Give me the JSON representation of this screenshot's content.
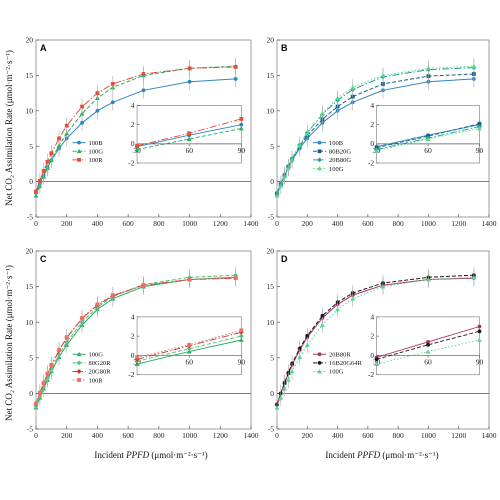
{
  "figure": {
    "ylabel": "Net CO₂ Assimilation Rate (μmol·m⁻²·s⁻¹)",
    "xlabel": "Incident PPFD (μmol·m⁻²·s⁻¹)",
    "xlabel_parts": [
      "Incident ",
      "PPFD",
      " (μmol·m⁻²·s⁻¹)"
    ]
  },
  "chart_data": [
    {
      "panel": "A",
      "type": "line",
      "x": [
        0,
        25,
        50,
        75,
        100,
        150,
        200,
        300,
        400,
        500,
        700,
        1000,
        1300
      ],
      "xlim": [
        0,
        1400
      ],
      "ylim": [
        -5,
        20
      ],
      "xticks": [
        0,
        200,
        400,
        600,
        800,
        1000,
        1200,
        1400
      ],
      "yticks": [
        -5,
        0,
        5,
        10,
        15,
        20
      ],
      "legend_position": "center-left",
      "series": [
        {
          "name": "100B",
          "color": "#2e86c1",
          "dash": "",
          "marker": "circle",
          "values": [
            -1.6,
            -0.3,
            0.9,
            2.0,
            3.0,
            4.7,
            6.1,
            8.3,
            10.0,
            11.2,
            12.9,
            14.1,
            14.5
          ]
        },
        {
          "name": "100G",
          "color": "#27ae60",
          "dash": "4,2",
          "marker": "triangle",
          "values": [
            -2.0,
            -0.6,
            0.7,
            1.9,
            3.1,
            5.1,
            6.8,
            9.6,
            11.8,
            13.3,
            15.0,
            16.0,
            16.3
          ]
        },
        {
          "name": "100R",
          "color": "#e74c3c",
          "dash": "7,2,1.5,2",
          "marker": "square",
          "values": [
            -1.4,
            0.1,
            1.5,
            2.8,
            4.0,
            6.1,
            7.9,
            10.6,
            12.5,
            13.8,
            15.2,
            16.0,
            16.2
          ]
        }
      ],
      "inset": {
        "xlim": [
          30,
          90
        ],
        "ylim": [
          -2,
          4
        ],
        "xticks": [
          30,
          60,
          90
        ],
        "yticks": [
          -2,
          0,
          2,
          4
        ],
        "series": [
          {
            "name": "100B",
            "x": [
              30,
              60,
              90
            ],
            "values": [
              -0.3,
              0.9,
              2.0
            ]
          },
          {
            "name": "100G",
            "x": [
              30,
              60,
              90
            ],
            "values": [
              -0.6,
              0.5,
              1.6
            ]
          },
          {
            "name": "100R",
            "x": [
              30,
              60,
              90
            ],
            "values": [
              -0.2,
              1.1,
              2.6
            ]
          }
        ]
      }
    },
    {
      "panel": "B",
      "type": "line",
      "x": [
        0,
        25,
        50,
        75,
        100,
        150,
        200,
        300,
        400,
        500,
        700,
        1000,
        1300
      ],
      "xlim": [
        0,
        1400
      ],
      "ylim": [
        -5,
        20
      ],
      "xticks": [
        0,
        200,
        400,
        600,
        800,
        1000,
        1200,
        1400
      ],
      "yticks": [
        -5,
        0,
        5,
        10,
        15,
        20
      ],
      "legend_position": "center-left",
      "series": [
        {
          "name": "100B",
          "color": "#2e86c1",
          "dash": "",
          "marker": "circle",
          "values": [
            -1.6,
            -0.3,
            0.9,
            2.0,
            3.0,
            4.7,
            6.1,
            8.3,
            10.0,
            11.2,
            12.9,
            14.1,
            14.5
          ]
        },
        {
          "name": "80B20G",
          "color": "#1a5e8f",
          "dash": "4,2",
          "marker": "square",
          "values": [
            -1.7,
            -0.4,
            0.9,
            2.1,
            3.2,
            5.0,
            6.5,
            8.8,
            10.6,
            12.0,
            13.8,
            14.9,
            15.2
          ]
        },
        {
          "name": "20B80G",
          "color": "#17a589",
          "dash": "7,2,1.5,2",
          "marker": "diamond",
          "values": [
            -1.9,
            -0.5,
            0.8,
            2.0,
            3.2,
            5.2,
            6.9,
            9.5,
            11.5,
            13.0,
            14.8,
            15.8,
            16.1
          ]
        },
        {
          "name": "100G",
          "color": "#58d68d",
          "dash": "1.5,2",
          "marker": "triangle",
          "values": [
            -2.0,
            -0.6,
            0.7,
            1.9,
            3.1,
            5.1,
            6.8,
            9.6,
            11.8,
            13.3,
            15.0,
            16.0,
            16.3
          ]
        }
      ],
      "inset": {
        "xlim": [
          30,
          90
        ],
        "ylim": [
          -2,
          4
        ],
        "xticks": [
          30,
          60,
          90
        ],
        "yticks": [
          -2,
          0,
          2,
          4
        ],
        "series": [
          {
            "name": "100B",
            "x": [
              30,
              60,
              90
            ],
            "values": [
              -0.3,
              0.9,
              2.0
            ]
          },
          {
            "name": "80B20G",
            "x": [
              30,
              60,
              90
            ],
            "values": [
              -0.4,
              0.8,
              2.1
            ]
          },
          {
            "name": "20B80G",
            "x": [
              30,
              60,
              90
            ],
            "values": [
              -0.6,
              0.6,
              1.8
            ]
          },
          {
            "name": "100G",
            "x": [
              30,
              60,
              90
            ],
            "values": [
              -0.7,
              0.5,
              1.6
            ]
          }
        ]
      }
    },
    {
      "panel": "C",
      "type": "line",
      "x": [
        0,
        25,
        50,
        75,
        100,
        150,
        200,
        300,
        400,
        500,
        700,
        1000,
        1300
      ],
      "xlim": [
        0,
        1400
      ],
      "ylim": [
        -5,
        20
      ],
      "xticks": [
        0,
        200,
        400,
        600,
        800,
        1000,
        1200,
        1400
      ],
      "yticks": [
        -5,
        0,
        5,
        10,
        15,
        20
      ],
      "legend_position": "center-left",
      "series": [
        {
          "name": "100G",
          "color": "#27ae60",
          "dash": "",
          "marker": "triangle",
          "values": [
            -2.0,
            -0.6,
            0.7,
            1.9,
            3.1,
            5.1,
            6.8,
            9.6,
            11.8,
            13.3,
            15.0,
            16.0,
            16.3
          ]
        },
        {
          "name": "80G20R",
          "color": "#52be80",
          "dash": "4,2",
          "marker": "diamond",
          "values": [
            -1.8,
            -0.4,
            0.9,
            2.2,
            3.4,
            5.5,
            7.2,
            10.0,
            12.1,
            13.6,
            15.3,
            16.3,
            16.6
          ]
        },
        {
          "name": "20G80R",
          "color": "#c0392b",
          "dash": "7,2,1.5,2",
          "marker": "diamond",
          "values": [
            -1.5,
            0.0,
            1.4,
            2.7,
            3.9,
            6.0,
            7.8,
            10.5,
            12.4,
            13.7,
            15.2,
            16.0,
            16.2
          ]
        },
        {
          "name": "100R",
          "color": "#ec7063",
          "dash": "1.5,2",
          "marker": "square",
          "values": [
            -1.4,
            0.1,
            1.5,
            2.8,
            4.0,
            6.1,
            7.9,
            10.6,
            12.5,
            13.8,
            15.2,
            16.0,
            16.2
          ]
        }
      ],
      "inset": {
        "xlim": [
          30,
          90
        ],
        "ylim": [
          -2,
          4
        ],
        "xticks": [
          30,
          60,
          90
        ],
        "yticks": [
          -2,
          0,
          2,
          4
        ],
        "series": [
          {
            "name": "100G",
            "x": [
              30,
              60,
              90
            ],
            "values": [
              -0.9,
              0.4,
              1.6
            ]
          },
          {
            "name": "80G20R",
            "x": [
              30,
              60,
              90
            ],
            "values": [
              -0.6,
              0.7,
              2.0
            ]
          },
          {
            "name": "20G80R",
            "x": [
              30,
              60,
              90
            ],
            "values": [
              -0.4,
              1.0,
              2.4
            ]
          },
          {
            "name": "100R",
            "x": [
              30,
              60,
              90
            ],
            "values": [
              -0.2,
              1.1,
              2.6
            ]
          }
        ]
      }
    },
    {
      "panel": "D",
      "type": "line",
      "x": [
        0,
        25,
        50,
        75,
        100,
        150,
        200,
        300,
        400,
        500,
        700,
        1000,
        1300
      ],
      "xlim": [
        0,
        1400
      ],
      "ylim": [
        -5,
        20
      ],
      "xticks": [
        0,
        200,
        400,
        600,
        800,
        1000,
        1200,
        1400
      ],
      "yticks": [
        -5,
        0,
        5,
        10,
        15,
        20
      ],
      "legend_position": "center-left",
      "series": [
        {
          "name": "20B80R",
          "color": "#a93266",
          "dash": "",
          "marker": "circle",
          "values": [
            -1.5,
            0.0,
            1.4,
            2.8,
            4.0,
            6.1,
            7.9,
            10.6,
            12.5,
            13.8,
            15.2,
            16.0,
            16.2
          ]
        },
        {
          "name": "16B20G64R",
          "color": "#1b1b1b",
          "dash": "4,2",
          "marker": "circle",
          "values": [
            -1.6,
            0.0,
            1.5,
            2.9,
            4.2,
            6.3,
            8.1,
            10.9,
            12.8,
            14.1,
            15.5,
            16.3,
            16.6
          ]
        },
        {
          "name": "100G",
          "color": "#58d68d",
          "dash": "1.5,2",
          "marker": "triangle",
          "values": [
            -2.0,
            -0.6,
            0.7,
            1.9,
            3.1,
            5.1,
            6.8,
            9.6,
            11.8,
            13.3,
            15.0,
            16.0,
            16.3
          ]
        }
      ],
      "inset": {
        "xlim": [
          30,
          90
        ],
        "ylim": [
          -2,
          4
        ],
        "xticks": [
          30,
          60,
          90
        ],
        "yticks": [
          -2,
          0,
          2,
          4
        ],
        "series": [
          {
            "name": "20B80R",
            "x": [
              30,
              60,
              90
            ],
            "values": [
              -0.2,
              1.4,
              3.0
            ]
          },
          {
            "name": "16B20G64R",
            "x": [
              30,
              60,
              90
            ],
            "values": [
              -0.4,
              1.1,
              2.5
            ]
          },
          {
            "name": "100G",
            "x": [
              30,
              60,
              90
            ],
            "values": [
              -0.9,
              0.4,
              1.6
            ]
          }
        ]
      }
    }
  ]
}
